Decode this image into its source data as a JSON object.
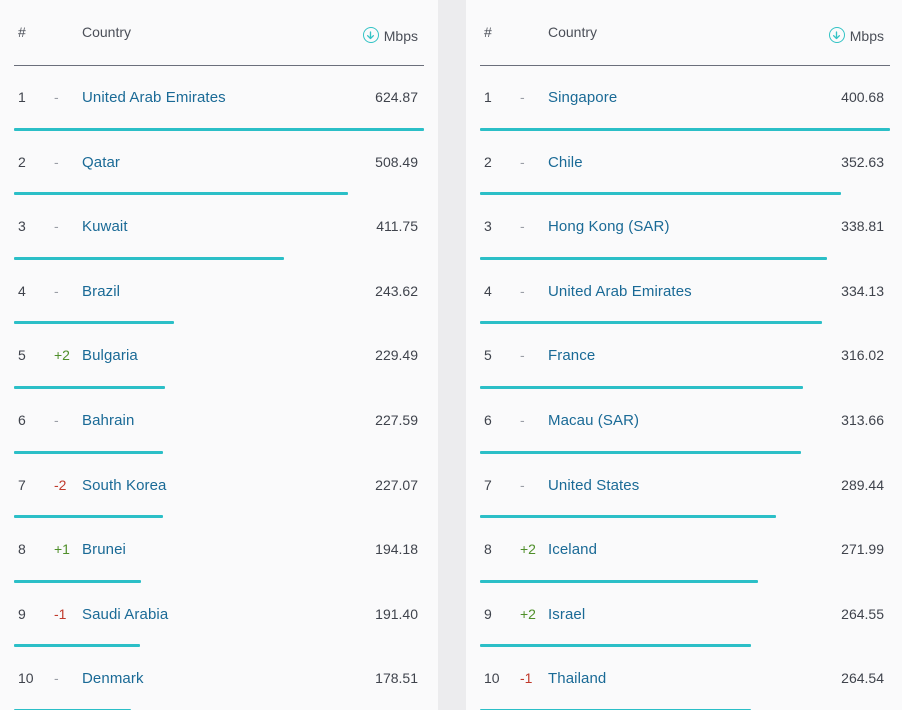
{
  "colors": {
    "accent": "#2bbfc7",
    "link": "#1a6a96",
    "positive": "#4f8f2a",
    "negative": "#c0392b",
    "neutral": "#9a9ea6"
  },
  "tables": [
    {
      "header": {
        "rank": "#",
        "country": "Country",
        "unit": "Mbps",
        "sort_icon": "arrow-down-circle-icon"
      },
      "rows": [
        {
          "rank": "1",
          "change": "-",
          "country": "United Arab Emirates",
          "value": "624.87"
        },
        {
          "rank": "2",
          "change": "-",
          "country": "Qatar",
          "value": "508.49"
        },
        {
          "rank": "3",
          "change": "-",
          "country": "Kuwait",
          "value": "411.75"
        },
        {
          "rank": "4",
          "change": "-",
          "country": "Brazil",
          "value": "243.62"
        },
        {
          "rank": "5",
          "change": "+2",
          "country": "Bulgaria",
          "value": "229.49"
        },
        {
          "rank": "6",
          "change": "-",
          "country": "Bahrain",
          "value": "227.59"
        },
        {
          "rank": "7",
          "change": "-2",
          "country": "South Korea",
          "value": "227.07"
        },
        {
          "rank": "8",
          "change": "+1",
          "country": "Brunei",
          "value": "194.18"
        },
        {
          "rank": "9",
          "change": "-1",
          "country": "Saudi Arabia",
          "value": "191.40"
        },
        {
          "rank": "10",
          "change": "-",
          "country": "Denmark",
          "value": "178.51"
        }
      ]
    },
    {
      "header": {
        "rank": "#",
        "country": "Country",
        "unit": "Mbps",
        "sort_icon": "arrow-down-circle-icon"
      },
      "rows": [
        {
          "rank": "1",
          "change": "-",
          "country": "Singapore",
          "value": "400.68"
        },
        {
          "rank": "2",
          "change": "-",
          "country": "Chile",
          "value": "352.63"
        },
        {
          "rank": "3",
          "change": "-",
          "country": "Hong Kong (SAR)",
          "value": "338.81"
        },
        {
          "rank": "4",
          "change": "-",
          "country": "United Arab Emirates",
          "value": "334.13"
        },
        {
          "rank": "5",
          "change": "-",
          "country": "France",
          "value": "316.02"
        },
        {
          "rank": "6",
          "change": "-",
          "country": "Macau (SAR)",
          "value": "313.66"
        },
        {
          "rank": "7",
          "change": "-",
          "country": "United States",
          "value": "289.44"
        },
        {
          "rank": "8",
          "change": "+2",
          "country": "Iceland",
          "value": "271.99"
        },
        {
          "rank": "9",
          "change": "+2",
          "country": "Israel",
          "value": "264.55"
        },
        {
          "rank": "10",
          "change": "-1",
          "country": "Thailand",
          "value": "264.54"
        }
      ]
    }
  ]
}
